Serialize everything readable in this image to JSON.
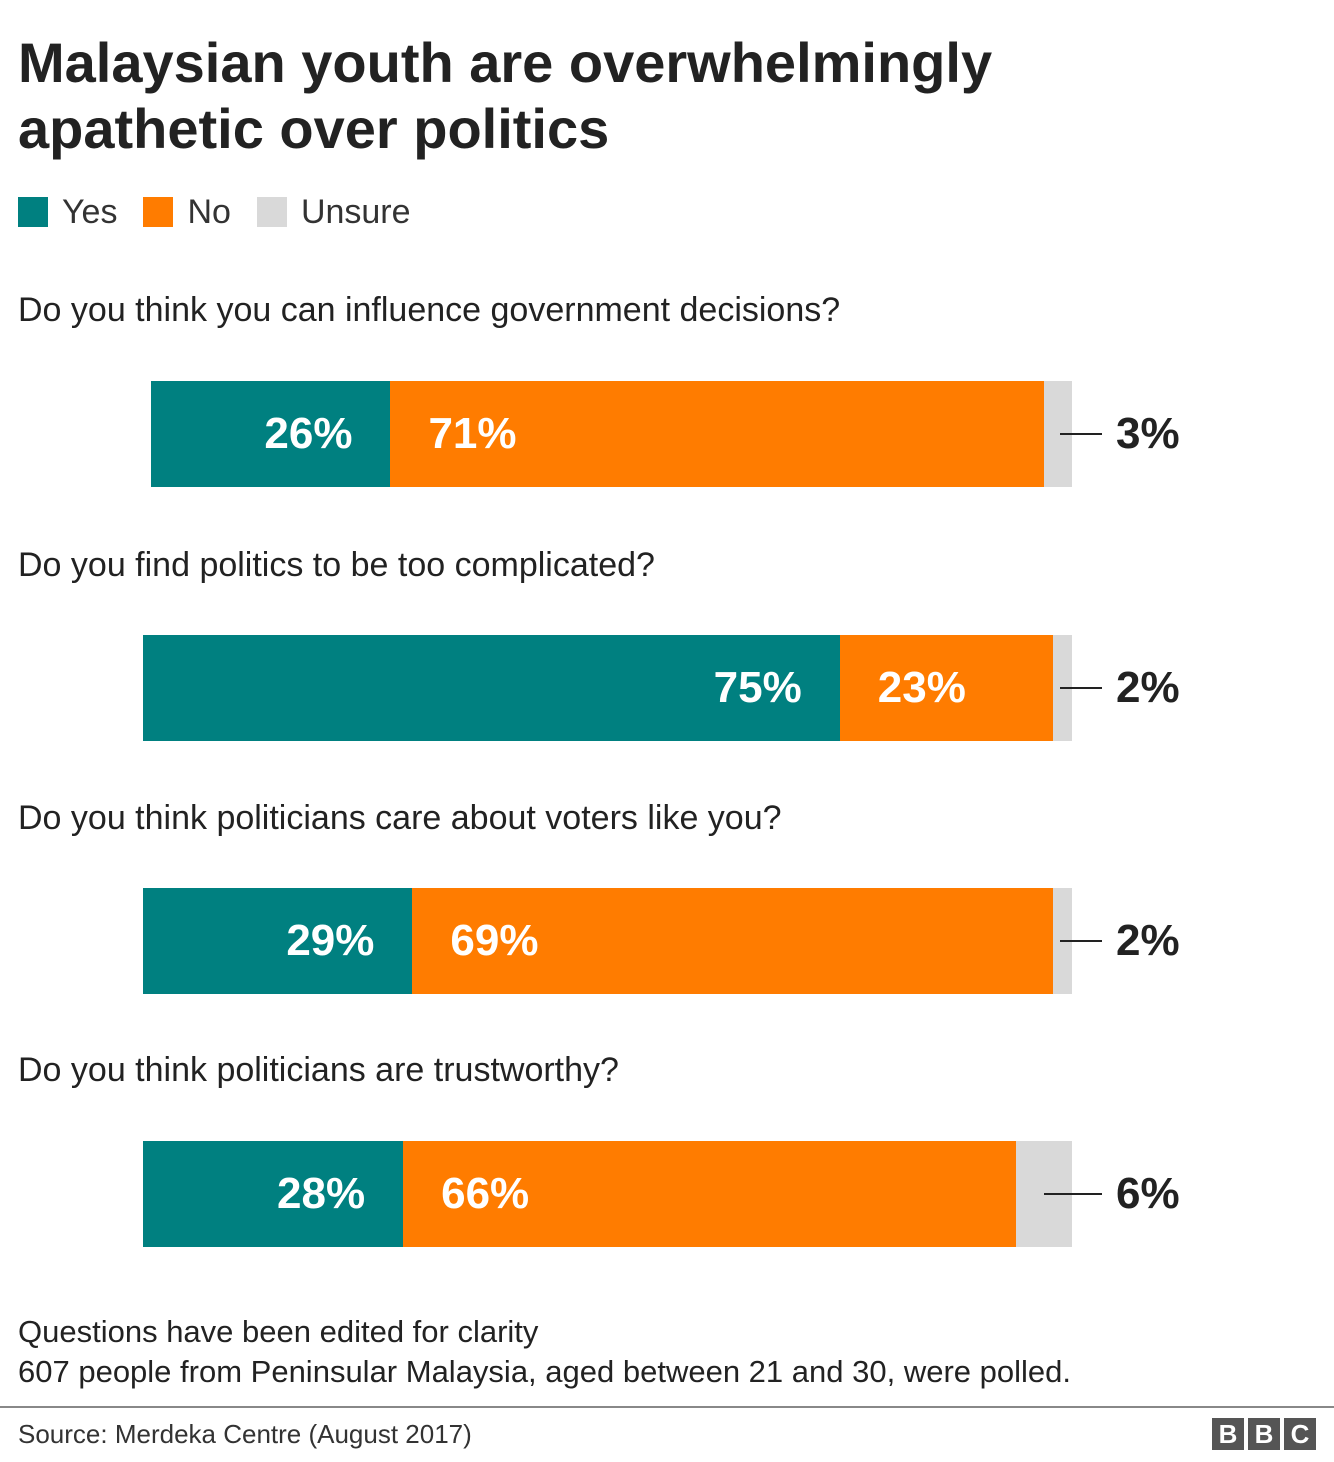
{
  "chart_data": {
    "type": "bar",
    "orientation": "horizontal",
    "stacked": true,
    "title": "Malaysian youth are overwhelmingly apathetic over politics",
    "legend": {
      "position": "top-left",
      "entries": [
        {
          "name": "Yes",
          "color": "#008080"
        },
        {
          "name": "No",
          "color": "#FF7C00"
        },
        {
          "name": "Unsure",
          "color": "#D9D9D9"
        }
      ]
    },
    "categories": [
      "Do you think you can influence government decisions?",
      "Do you find politics to be too complicated?",
      "Do you think politicians care about voters like you?",
      "Do you think politicians are trustworthy?"
    ],
    "series": [
      {
        "name": "Yes",
        "color": "#008080",
        "values": [
          26,
          75,
          29,
          28
        ]
      },
      {
        "name": "No",
        "color": "#FF7C00",
        "values": [
          71,
          23,
          69,
          66
        ]
      },
      {
        "name": "Unsure",
        "color": "#D9D9D9",
        "values": [
          3,
          2,
          2,
          6
        ]
      }
    ],
    "data_labels": [
      [
        "26%",
        "71%",
        "3%"
      ],
      [
        "75%",
        "23%",
        "2%"
      ],
      [
        "29%",
        "69%",
        "2%"
      ],
      [
        "28%",
        "66%",
        "6%"
      ]
    ],
    "unit": "%",
    "xlim": [
      0,
      100
    ],
    "grid": false
  },
  "notes": [
    "Questions have been edited for clarity",
    "607 people from Peninsular Malaysia, aged between 21 and 30, were polled."
  ],
  "source": "Source: Merdeka Centre (August 2017)",
  "logo": [
    "B",
    "B",
    "C"
  ]
}
